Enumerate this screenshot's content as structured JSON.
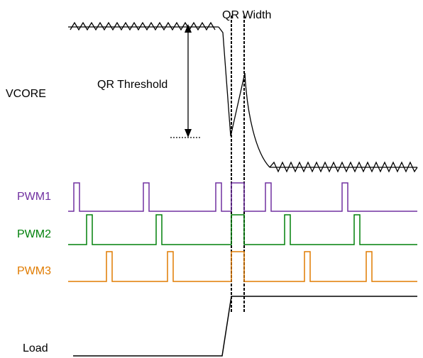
{
  "labels": {
    "vcore": "VCORE",
    "qr_threshold": "QR Threshold",
    "qr_width": "QR Width",
    "pwm1": "PWM1",
    "pwm2": "PWM2",
    "pwm3": "PWM3",
    "load": "Load"
  },
  "colors": {
    "vcore": "#000000",
    "pwm1": "#7030a0",
    "pwm2": "#00800a",
    "pwm3": "#e07b00",
    "load": "#000000"
  }
}
